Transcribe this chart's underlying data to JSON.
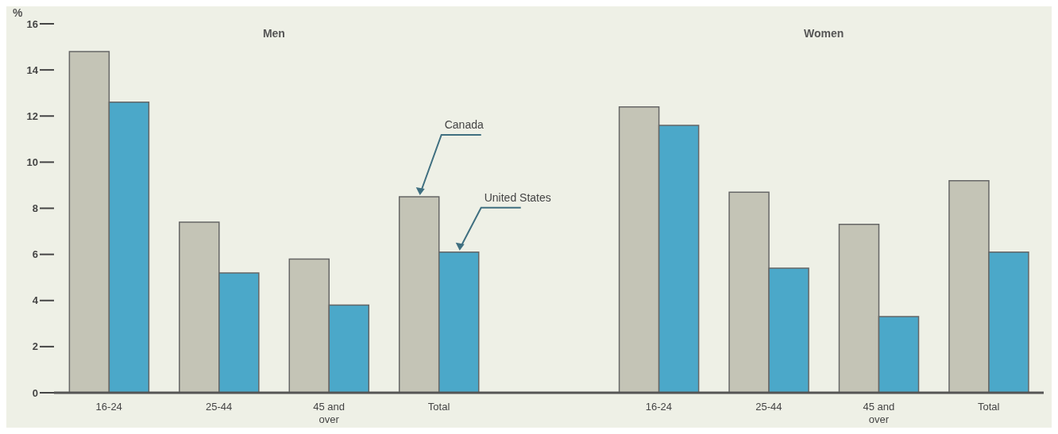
{
  "chart_data": {
    "type": "bar",
    "ylabel": "%",
    "annotations": [
      "Men",
      "Women"
    ],
    "categories": [
      "16-24",
      "25-44",
      "45 and over",
      "Total",
      null,
      "16-24",
      "25-44",
      "45 and over",
      "Total"
    ],
    "series": [
      {
        "name": "Canada",
        "color": "#c4c4b6",
        "values": [
          14.8,
          7.4,
          5.8,
          8.5,
          null,
          12.4,
          8.7,
          7.3,
          9.2
        ]
      },
      {
        "name": "United States",
        "color": "#4ba8c9",
        "values": [
          12.6,
          5.2,
          3.8,
          6.1,
          null,
          11.6,
          5.4,
          3.3,
          6.1
        ]
      }
    ],
    "ylim": [
      0,
      16
    ],
    "yticks": [
      0,
      2,
      4,
      6,
      8,
      10,
      12,
      14,
      16
    ],
    "grid": false,
    "legend": false
  }
}
